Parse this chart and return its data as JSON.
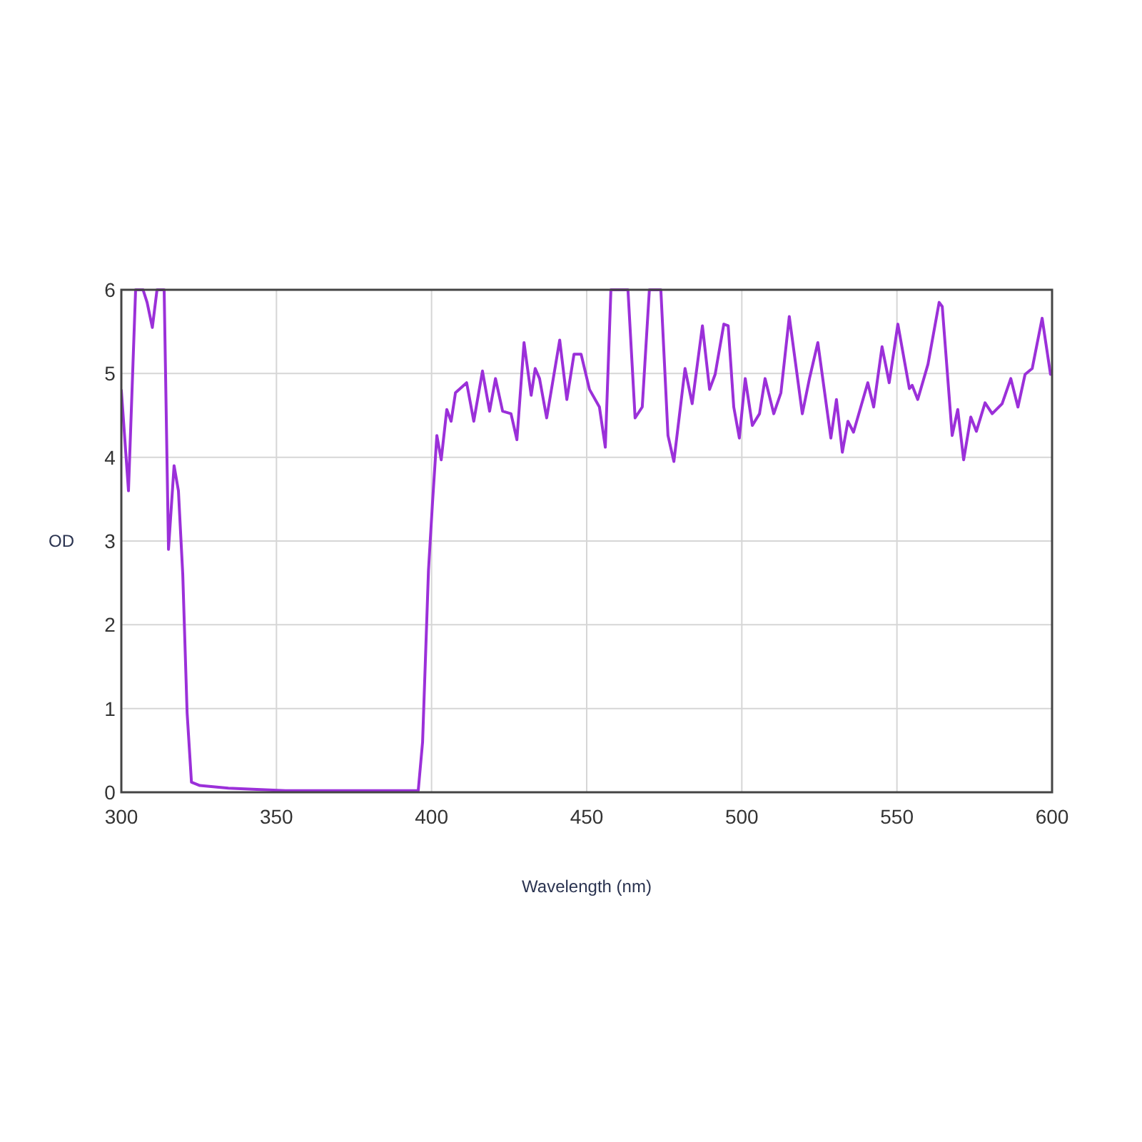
{
  "chart_data": {
    "type": "line",
    "xlabel": "Wavelength (nm)",
    "ylabel": "OD",
    "xlim": [
      300,
      600
    ],
    "ylim": [
      0,
      6
    ],
    "xticks": [
      300,
      350,
      400,
      450,
      500,
      550,
      600
    ],
    "yticks": [
      0,
      1,
      2,
      3,
      4,
      5,
      6
    ],
    "grid": true,
    "line_style": "solid",
    "marker": "none",
    "series": [
      {
        "color": "#9b30d9",
        "x": [
          300,
          302.3,
          304.6,
          307,
          308.3,
          310,
          311.5,
          313.8,
          315.2,
          317,
          318.4,
          319.8,
          321.2,
          322.6,
          325.3,
          334.5,
          352.9,
          375.9,
          395.7,
          397.1,
          399,
          400.3,
          401.7,
          403.1,
          404.9,
          406.3,
          407.7,
          411.3,
          413.6,
          416.4,
          418.7,
          420.6,
          422.9,
          425.6,
          427.5,
          429.8,
          432.1,
          433.4,
          434.8,
          437.1,
          441.3,
          443.6,
          445.9,
          448.2,
          450.9,
          454.1,
          456,
          457.8,
          463.3,
          465.6,
          467.9,
          470.2,
          473.9,
          476.2,
          478.1,
          479.4,
          481.7,
          484,
          487.3,
          489.6,
          491.4,
          494.2,
          495.6,
          497.4,
          499.2,
          501.1,
          503.4,
          505.7,
          507.5,
          510.3,
          512.6,
          515.3,
          519.5,
          521.8,
          524.5,
          528.7,
          530.5,
          532.4,
          534.2,
          536,
          540.6,
          542.5,
          545.2,
          547.5,
          550.3,
          554,
          554.9,
          556.7,
          560,
          563.6,
          564.6,
          567.8,
          569.6,
          571.5,
          573.8,
          575.6,
          578.4,
          580.7,
          583.9,
          586.7,
          589,
          591.3,
          593.6,
          596.8,
          599.5,
          600
        ],
        "values": [
          4.8,
          3.6,
          6,
          6,
          5.85,
          5.55,
          6,
          6,
          2.9,
          3.9,
          3.6,
          2.6,
          0.95,
          0.12,
          0.08,
          0.05,
          0.02,
          0.02,
          0.02,
          0.6,
          2.65,
          3.46,
          4.26,
          3.97,
          4.57,
          4.43,
          4.77,
          4.89,
          4.43,
          5.03,
          4.55,
          4.94,
          4.55,
          4.52,
          4.21,
          5.37,
          4.74,
          5.06,
          4.94,
          4.47,
          5.4,
          4.69,
          5.23,
          5.23,
          4.81,
          4.6,
          4.12,
          6,
          6,
          4.47,
          4.6,
          6,
          6,
          4.26,
          3.95,
          4.35,
          5.06,
          4.64,
          5.57,
          4.81,
          4.99,
          5.59,
          5.57,
          4.6,
          4.23,
          4.94,
          4.38,
          4.52,
          4.94,
          4.52,
          4.77,
          5.68,
          4.52,
          4.94,
          5.37,
          4.23,
          4.69,
          4.06,
          4.43,
          4.3,
          4.89,
          4.6,
          5.32,
          4.89,
          5.59,
          4.82,
          4.86,
          4.69,
          5.11,
          5.85,
          5.8,
          4.26,
          4.57,
          3.97,
          4.48,
          4.31,
          4.65,
          4.52,
          4.64,
          4.94,
          4.6,
          4.99,
          5.06,
          5.66,
          4.99,
          5
        ]
      }
    ]
  }
}
